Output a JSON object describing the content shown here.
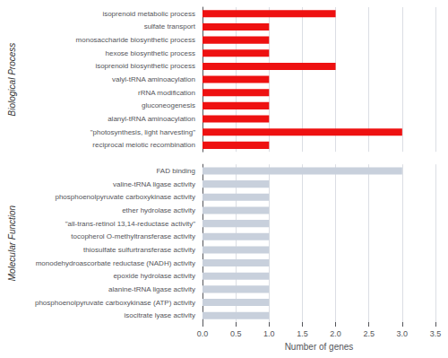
{
  "chart_data": [
    {
      "type": "bar",
      "orientation": "horizontal",
      "title": "Biological Process",
      "categories": [
        "isoprenoid metabolic process",
        "sulfate transport",
        "monosaccharide biosynthetic process",
        "hexose biosynthetic process",
        "isoprenoid biosynthetic process",
        "valyl-tRNA aminoacylation",
        "rRNA modification",
        "gluconeogenesis",
        "alanyl-tRNA aminoacylation",
        "\"photosynthesis, light harvesting\"",
        "reciprocal meiotic recombination"
      ],
      "values": [
        2.0,
        1.0,
        1.0,
        1.0,
        2.0,
        1.0,
        1.0,
        1.0,
        1.0,
        3.0,
        1.0
      ],
      "color": "#EE1111",
      "xlim": [
        0,
        3.5
      ],
      "xticks": [
        {
          "value": 0,
          "label": "0.0"
        },
        0.5,
        {
          "value": 1.0,
          "label": "1.0"
        },
        1.5,
        {
          "value": 2.0,
          "label": "2.0"
        },
        2.5,
        {
          "value": 3.0,
          "label": "3.0"
        },
        3.5
      ],
      "grid": true,
      "tick_labels": "y"
    },
    {
      "type": "bar",
      "orientation": "horizontal",
      "title": "Molecular Function",
      "xlabel": "Number of genes",
      "categories": [
        "FAD binding",
        "valine-tRNA ligase activity",
        "phosphoenolpyruvate carboxykinase activity",
        "ether hydrolase activity",
        "\"all-trans-retinol 13,14-reductase activity\"",
        "tocopherol O-methyltransferase activity",
        "thiosulfate sulfurtransferase activity",
        "monodehydroascorbate reductase (NADH) activity",
        "epoxide hydrolase activity",
        "alanine-tRNA ligase activity",
        "phosphoenolpyruvate carboxykinase (ATP) activity",
        "isocitrate lyase activity"
      ],
      "values": [
        3.0,
        1.0,
        1.0,
        1.0,
        1.0,
        1.0,
        1.0,
        1.0,
        1.0,
        1.0,
        1.0,
        1.0
      ],
      "color": "#C8D0DC",
      "xlim": [
        0,
        3.5
      ],
      "xticks": [
        {
          "value": 0,
          "label": "0.0"
        },
        0.5,
        {
          "value": 1.0,
          "label": "1.0"
        },
        1.5,
        {
          "value": 2.0,
          "label": "2.0"
        },
        2.5,
        {
          "value": 3.0,
          "label": "3.0"
        },
        3.5
      ],
      "grid": true
    }
  ]
}
